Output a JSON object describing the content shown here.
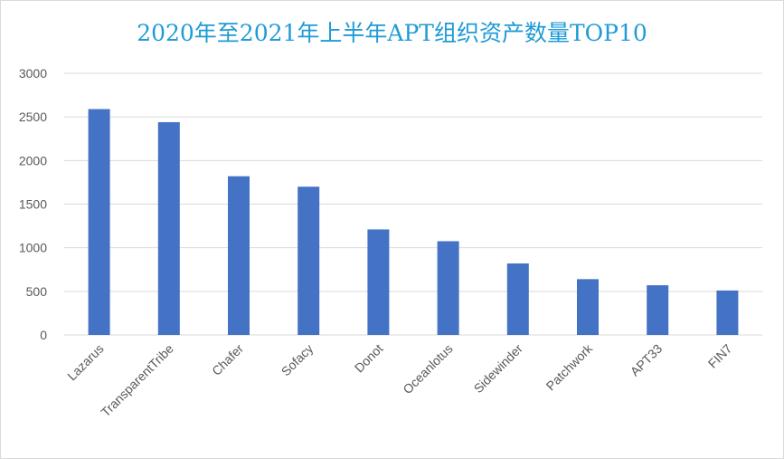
{
  "chart_data": {
    "type": "bar",
    "title": "2020年至2021年上半年APT组织资产数量TOP10",
    "categories": [
      "Lazarus",
      "TransparentTribe",
      "Chafer",
      "Sofacy",
      "Donot",
      "Oceanlotus",
      "Sidewinder",
      "Patchwork",
      "APT33",
      "FIN7"
    ],
    "values": [
      2590,
      2440,
      1820,
      1700,
      1210,
      1075,
      820,
      640,
      570,
      510
    ],
    "ylim": [
      0,
      3000
    ],
    "yticks": [
      "0",
      "500",
      "1000",
      "1500",
      "2000",
      "2500",
      "3000"
    ],
    "grid": true,
    "legend": "none",
    "bar_color": "#4472c4",
    "grid_color": "#d9d9d9",
    "title_color": "#1f9bd6"
  }
}
